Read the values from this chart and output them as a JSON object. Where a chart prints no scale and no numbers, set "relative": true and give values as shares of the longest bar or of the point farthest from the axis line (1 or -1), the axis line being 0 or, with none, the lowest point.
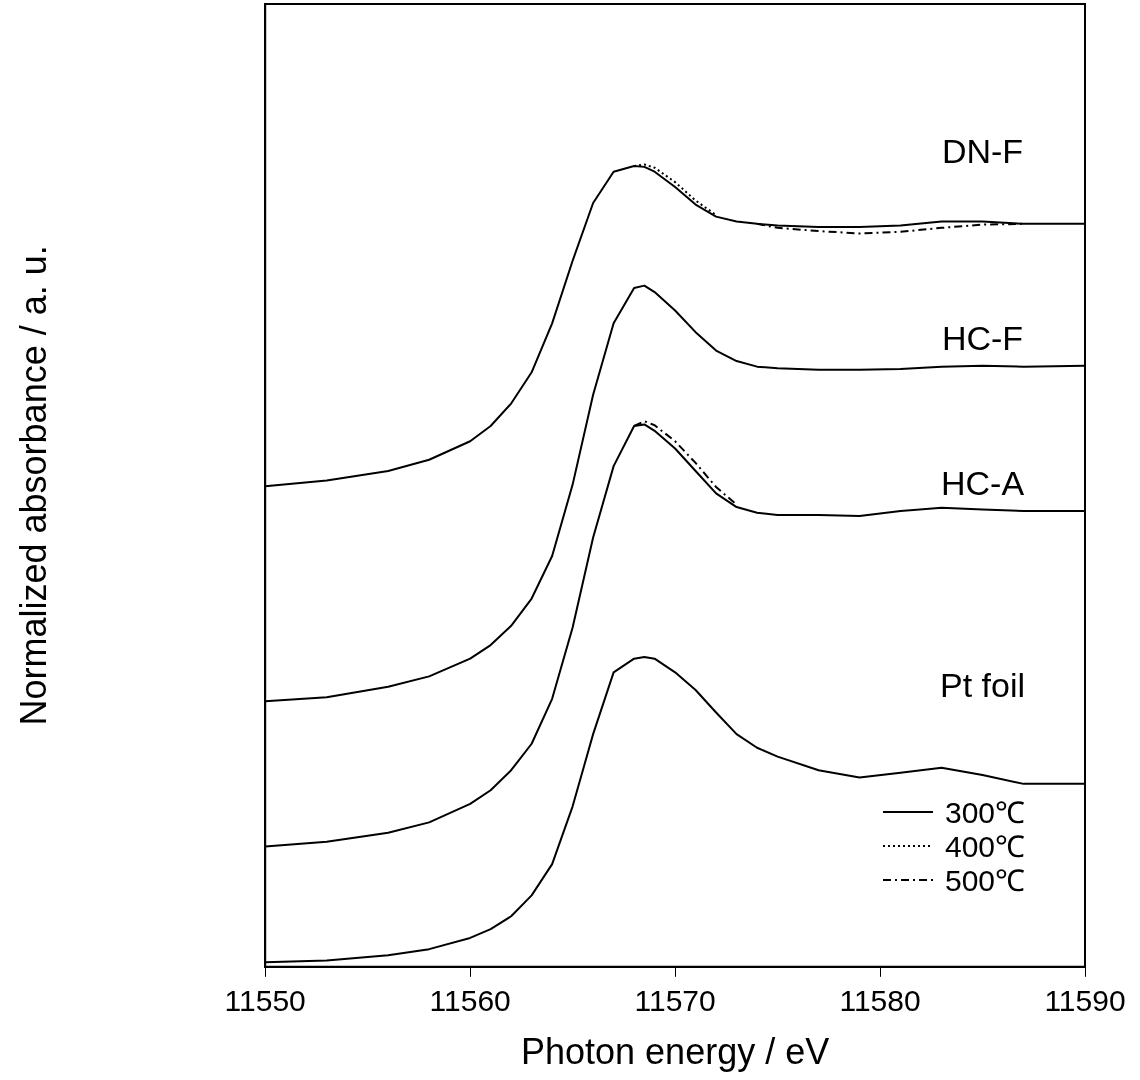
{
  "chart_data": {
    "type": "line",
    "xlabel": "Photon energy / eV",
    "ylabel": "Normalized absorbance / a. u.",
    "relative": true,
    "xlim": [
      11550,
      11590
    ],
    "xticks": [
      11550,
      11560,
      11570,
      11580,
      11590
    ],
    "grid": false,
    "legend": "bottom right",
    "marker": "none",
    "x": [
      11550,
      11553,
      11556,
      11558,
      11560,
      11561,
      11562,
      11563,
      11564,
      11565,
      11566,
      11567,
      11568,
      11568.5,
      11569,
      11570,
      11571,
      11572,
      11573,
      11574,
      11575,
      11577,
      11579,
      11581,
      11583,
      11585,
      11587,
      11590
    ],
    "series": [
      {
        "name": "300℃",
        "color": "#000000",
        "line_style": "solid",
        "values": [
          0.599,
          0.606,
          0.618,
          0.632,
          0.655,
          0.674,
          0.702,
          0.741,
          0.802,
          0.88,
          0.952,
          0.991,
          0.998,
          0.997,
          0.991,
          0.972,
          0.95,
          0.935,
          0.929,
          0.926,
          0.924,
          0.922,
          0.922,
          0.924,
          0.929,
          0.929,
          0.926,
          0.926
        ]
      },
      {
        "name": "400℃",
        "color": "#000000",
        "line_style": "dotted",
        "values": [
          null,
          null,
          null,
          null,
          null,
          null,
          null,
          null,
          null,
          null,
          null,
          null,
          0.998,
          1,
          0.996,
          0.978,
          0.955,
          0.937,
          null,
          null,
          null,
          null,
          null,
          null,
          null,
          null,
          null,
          null
        ]
      },
      {
        "name": "500℃",
        "color": "#000000",
        "line_style": "dashed",
        "values": [
          null,
          null,
          null,
          null,
          null,
          null,
          null,
          null,
          null,
          null,
          null,
          null,
          null,
          null,
          null,
          null,
          null,
          null,
          null,
          0.926,
          0.921,
          0.917,
          0.914,
          0.916,
          0.921,
          0.925,
          0.926,
          null
        ]
      },
      {
        "color": "#000000",
        "line_style": "solid",
        "values": [
          0.331,
          0.336,
          0.349,
          0.362,
          0.384,
          0.401,
          0.425,
          0.459,
          0.512,
          0.601,
          0.713,
          0.802,
          0.846,
          0.849,
          0.841,
          0.818,
          0.791,
          0.768,
          0.755,
          0.748,
          0.746,
          0.744,
          0.744,
          0.745,
          0.748,
          0.749,
          0.748,
          0.749
        ]
      },
      {
        "color": "#000000",
        "line_style": "solid",
        "values": [
          0.15,
          0.156,
          0.167,
          0.18,
          0.203,
          0.22,
          0.245,
          0.278,
          0.334,
          0.423,
          0.535,
          0.624,
          0.674,
          0.676,
          0.668,
          0.646,
          0.618,
          0.59,
          0.573,
          0.566,
          0.563,
          0.563,
          0.562,
          0.568,
          0.572,
          0.57,
          0.568,
          0.568
        ]
      },
      {
        "color": "#000000",
        "line_style": "dashed",
        "values": [
          null,
          null,
          null,
          null,
          null,
          null,
          null,
          null,
          null,
          null,
          null,
          null,
          0.674,
          0.68,
          0.675,
          0.655,
          0.628,
          0.598,
          0.576,
          null,
          null,
          null,
          null,
          null,
          null,
          null,
          null,
          null
        ]
      },
      {
        "color": "#000000",
        "line_style": "solid",
        "values": [
          0.0056,
          0.0078,
          0.0145,
          0.022,
          0.036,
          0.047,
          0.063,
          0.089,
          0.128,
          0.2,
          0.29,
          0.367,
          0.384,
          0.386,
          0.384,
          0.367,
          0.345,
          0.317,
          0.29,
          0.273,
          0.262,
          0.245,
          0.236,
          0.242,
          0.248,
          0.239,
          0.228,
          0.228
        ]
      }
    ],
    "annotations": [
      "DN-F",
      "HC-F",
      "HC-A",
      "Pt foil"
    ]
  }
}
